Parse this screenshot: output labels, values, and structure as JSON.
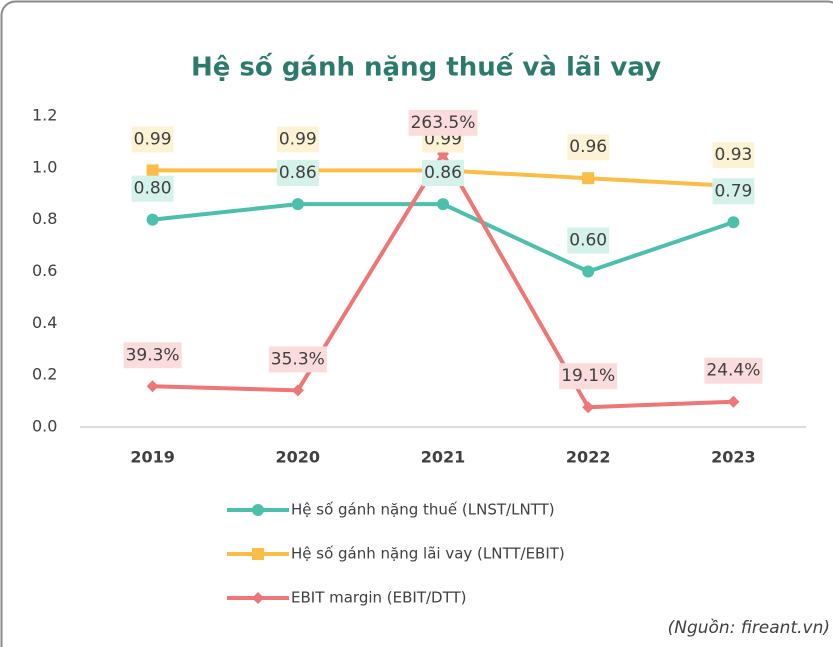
{
  "chart_data": {
    "type": "line",
    "title": "Hệ số gánh nặng thuế và lãi vay",
    "categories": [
      "2019",
      "2020",
      "2021",
      "2022",
      "2023"
    ],
    "series": [
      {
        "name": "Hệ số gánh nặng thuế (LNST/LNTT)",
        "color": "#4dbfad",
        "marker": "circle",
        "values": [
          0.8,
          0.86,
          0.86,
          0.6,
          0.79
        ],
        "value_labels": [
          "0.80",
          "0.86",
          "0.86",
          "0.60",
          "0.79"
        ],
        "label_bg": "#d4f1ea"
      },
      {
        "name": "Hệ số gánh nặng lãi vay (LNTT/EBIT)",
        "color": "#fbbd46",
        "marker": "square",
        "values": [
          0.99,
          0.99,
          0.99,
          0.96,
          0.93
        ],
        "value_labels": [
          "0.99",
          "0.99",
          "0.99",
          "0.96",
          "0.93"
        ],
        "label_bg": "#fdf3d4"
      },
      {
        "name": "EBIT margin (EBIT/DTT)",
        "color": "#ef7676",
        "marker": "diamond",
        "axis": "y2",
        "values": [
          39.3,
          35.3,
          263.5,
          19.1,
          24.4
        ],
        "value_labels": [
          "39.3%",
          "35.3%",
          "263.5%",
          "19.1%",
          "24.4%"
        ],
        "label_bg": "#fbdcdc"
      }
    ],
    "ylim": [
      0,
      1.2
    ],
    "yticks": [
      {
        "value": 0,
        "label": "0.0"
      },
      0.2,
      0.4,
      0.6,
      0.8,
      {
        "value": 1,
        "label": "1.0"
      },
      1.2
    ],
    "y2lim": [
      0,
      300
    ],
    "legend": "bottom",
    "source": "(Nguồn: fireant.vn)"
  }
}
